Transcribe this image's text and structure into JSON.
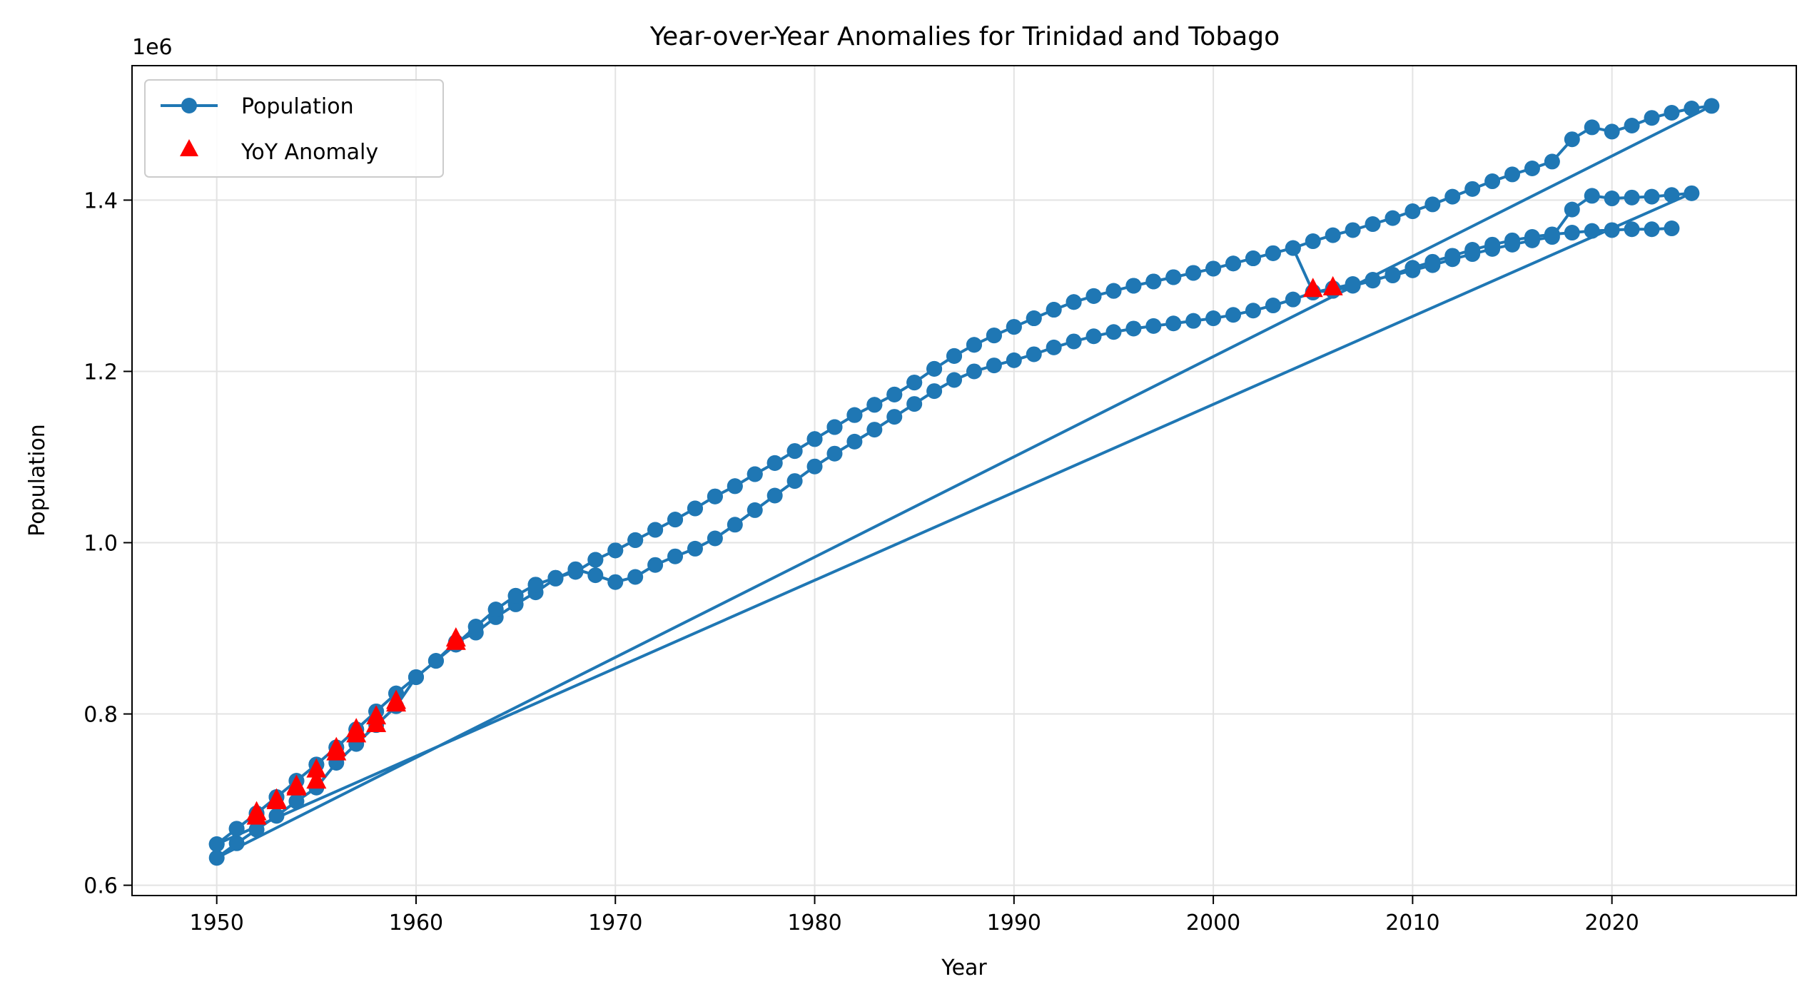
{
  "chart_data": {
    "type": "line",
    "title": "Year-over-Year Anomalies for Trinidad and Tobago",
    "xlabel": "Year",
    "ylabel": "Population",
    "y_offset_label": "1e6",
    "y_scale_factor": 1000000,
    "xlim": [
      1945.75,
      2029.25
    ],
    "ylim": [
      588000,
      1557000
    ],
    "x_ticks": [
      1950,
      1960,
      1970,
      1980,
      1990,
      2000,
      2010,
      2020
    ],
    "x_tick_labels": [
      "1950",
      "1960",
      "1970",
      "1980",
      "1990",
      "2000",
      "2010",
      "2020"
    ],
    "y_ticks": [
      600000,
      800000,
      1000000,
      1200000,
      1400000
    ],
    "y_tick_labels": [
      "0.6",
      "0.8",
      "1.0",
      "1.2",
      "1.4"
    ],
    "grid": true,
    "legend_position": "upper-left",
    "colors": {
      "series": "#1f77b4",
      "anomaly": "#ff0000"
    },
    "series": [
      {
        "name": "Population",
        "style": "line-with-circle-markers",
        "x": [
          1950,
          1951,
          1952,
          1953,
          1954,
          1955,
          1956,
          1957,
          1958,
          1959,
          1960,
          1961,
          1962,
          1963,
          1964,
          1965,
          1966,
          1967,
          1968,
          1969,
          1970,
          1971,
          1972,
          1973,
          1974,
          1975,
          1976,
          1977,
          1978,
          1979,
          1980,
          1981,
          1982,
          1983,
          1984,
          1985,
          1986,
          1987,
          1988,
          1989,
          1990,
          1991,
          1992,
          1993,
          1994,
          1995,
          1996,
          1997,
          1998,
          1999,
          2000,
          2001,
          2002,
          2003,
          2004,
          2005,
          2006,
          2007,
          2008,
          2009,
          2010,
          2011,
          2012,
          2013,
          2014,
          2015,
          2016,
          2017,
          2018,
          2019,
          2020,
          2021,
          2022,
          2023,
          2024,
          2025,
          1950,
          1951,
          1952,
          1953,
          1954,
          1955,
          1956,
          1957,
          1958,
          1959,
          1960,
          1961,
          1962,
          1963,
          1964,
          1965,
          1966,
          1967,
          1968,
          1969,
          1970,
          1971,
          1972,
          1973,
          1974,
          1975,
          1976,
          1977,
          1978,
          1979,
          1980,
          1981,
          1982,
          1983,
          1984,
          1985,
          1986,
          1987,
          1988,
          1989,
          1990,
          1991,
          1992,
          1993,
          1994,
          1995,
          1996,
          1997,
          1998,
          1999,
          2000,
          2001,
          2002,
          2003,
          2004,
          2005,
          2006,
          2007,
          2008,
          2009,
          2010,
          2011,
          2012,
          2013,
          2014,
          2015,
          2016,
          2017,
          2018,
          2019,
          2020,
          2021,
          2022,
          2023,
          2024,
          1950,
          1951,
          1952,
          1953,
          1954,
          1955,
          1956,
          1957,
          1958,
          1959,
          1960,
          1961,
          1962,
          1963,
          1964,
          1965,
          1966,
          1967,
          1968,
          1969,
          1970,
          1971,
          1972,
          1973,
          1974,
          1975,
          1976,
          1977,
          1978,
          1979,
          1980,
          1981,
          1982,
          1983,
          1984,
          1985,
          1986,
          1987,
          1988,
          1989,
          1990,
          1991,
          1992,
          1993,
          1994,
          1995,
          1996,
          1997,
          1998,
          1999,
          2000,
          2001,
          2002,
          2003,
          2004,
          2005,
          2006,
          2007,
          2008,
          2009,
          2010,
          2011,
          2012,
          2013,
          2014,
          2015,
          2016,
          2017,
          2018,
          2019,
          2020,
          2021,
          2022,
          2023
        ],
        "y": [
          648000,
          666000,
          684000,
          703000,
          722000,
          741000,
          761000,
          782000,
          803000,
          824000,
          843000,
          862000,
          881000,
          902000,
          922000,
          938000,
          951000,
          959000,
          966000,
          980000,
          991000,
          1003000,
          1015000,
          1027000,
          1040000,
          1054000,
          1066000,
          1080000,
          1093000,
          1107000,
          1121000,
          1135000,
          1149000,
          1161000,
          1173000,
          1187000,
          1203000,
          1218000,
          1231000,
          1242000,
          1252000,
          1262000,
          1272000,
          1281000,
          1288000,
          1294000,
          1300000,
          1305000,
          1310000,
          1315000,
          1320000,
          1326000,
          1332000,
          1338000,
          1344000,
          1352000,
          1359000,
          1365000,
          1372000,
          1379000,
          1387000,
          1395000,
          1404000,
          1413000,
          1422000,
          1430000,
          1437000,
          1445000,
          1471000,
          1485000,
          1480000,
          1487000,
          1496000,
          1502000,
          1507000,
          1510000,
          632000,
          649000,
          665000,
          681000,
          698000,
          714000,
          743000,
          765000,
          787000,
          809000,
          843000,
          862000,
          884000,
          895000,
          913000,
          928000,
          942000,
          958000,
          969000,
          962000,
          954000,
          960000,
          974000,
          984000,
          993000,
          1005000,
          1021000,
          1038000,
          1055000,
          1072000,
          1089000,
          1104000,
          1118000,
          1132000,
          1147000,
          1162000,
          1177000,
          1190000,
          1200000,
          1207000,
          1213000,
          1220000,
          1228000,
          1235000,
          1241000,
          1246000,
          1250000,
          1253000,
          1256000,
          1259000,
          1262000,
          1266000,
          1271000,
          1277000,
          1284000,
          1292000,
          1297000,
          1302000,
          1307000,
          1312000,
          1318000,
          1324000,
          1331000,
          1337000,
          1343000,
          1348000,
          1353000,
          1357000,
          1389000,
          1405000,
          1402000,
          1403000,
          1404000,
          1406000,
          1408000,
          648000,
          666000,
          684000,
          703000,
          722000,
          741000,
          761000,
          782000,
          803000,
          824000,
          843000,
          862000,
          881000,
          902000,
          922000,
          938000,
          951000,
          959000,
          966000,
          980000,
          991000,
          1003000,
          1015000,
          1027000,
          1040000,
          1054000,
          1066000,
          1080000,
          1093000,
          1107000,
          1121000,
          1135000,
          1149000,
          1161000,
          1173000,
          1187000,
          1203000,
          1218000,
          1231000,
          1242000,
          1252000,
          1262000,
          1272000,
          1281000,
          1288000,
          1294000,
          1300000,
          1305000,
          1310000,
          1315000,
          1320000,
          1326000,
          1332000,
          1338000,
          1344000,
          1293000,
          1294000,
          1300000,
          1306000,
          1313000,
          1321000,
          1328000,
          1335000,
          1342000,
          1348000,
          1353000,
          1357000,
          1360000,
          1362000,
          1364000,
          1365000,
          1366000,
          1366000,
          1367000
        ]
      },
      {
        "name": "YoY Anomaly",
        "style": "triangle-markers",
        "x": [
          1952,
          1953,
          1954,
          1955,
          1956,
          1957,
          1958,
          1959,
          1962,
          1952,
          1953,
          1954,
          1955,
          1956,
          1957,
          1958,
          1959,
          1962,
          2005,
          2006
        ],
        "y": [
          680000,
          698000,
          716000,
          735000,
          755000,
          776000,
          797000,
          812000,
          884000,
          685000,
          700000,
          714000,
          722000,
          760000,
          782000,
          788000,
          815000,
          888000,
          1296000,
          1298000
        ]
      }
    ]
  }
}
